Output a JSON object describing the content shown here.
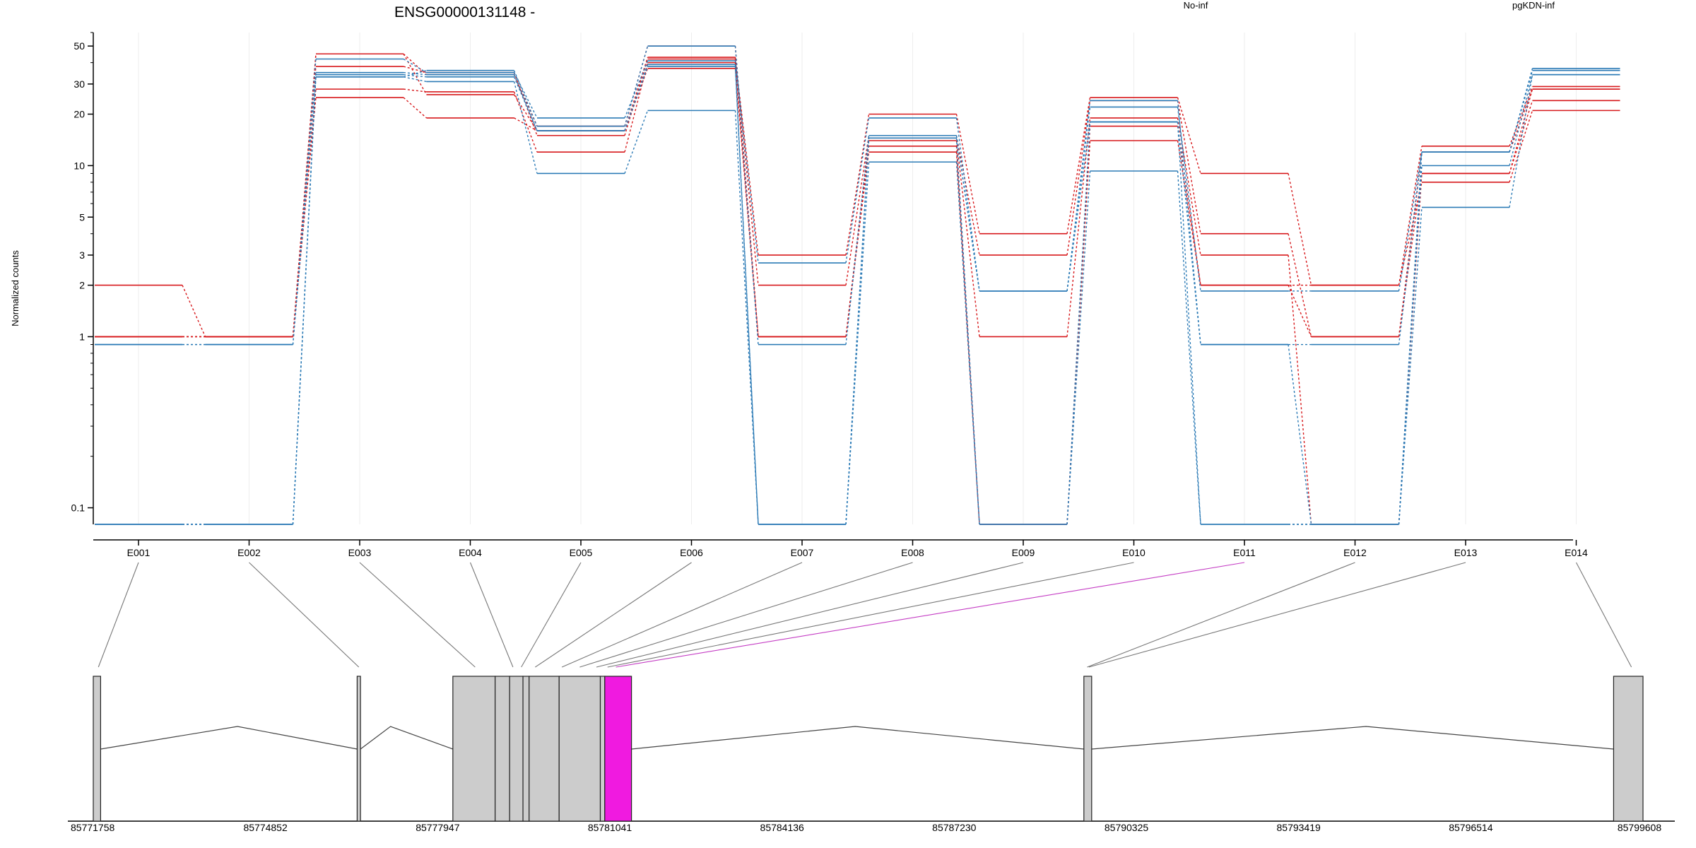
{
  "chart_data": {
    "type": "line",
    "title": "ENSG00000131148 -",
    "ylabel": "Normalized counts",
    "xlabel": "",
    "y_scale": "log",
    "ylim": [
      0.08,
      60
    ],
    "y_ticks": [
      {
        "value": 50,
        "label": "50"
      },
      {
        "value": 30,
        "label": "30"
      },
      {
        "value": 20,
        "label": "20"
      },
      {
        "value": 10,
        "label": "10"
      },
      {
        "value": 5,
        "label": "5"
      },
      {
        "value": 3,
        "label": "3"
      },
      {
        "value": 2,
        "label": "2"
      },
      {
        "value": 1,
        "label": "1"
      },
      {
        "value": 0.1,
        "label": "0.1"
      }
    ],
    "categories": [
      "E001",
      "E002",
      "E003",
      "E004",
      "E005",
      "E006",
      "E007",
      "E008",
      "E009",
      "E010",
      "E011",
      "E012",
      "E013",
      "E014"
    ],
    "legend": [
      {
        "name": "No-inf",
        "color": "#d7191c"
      },
      {
        "name": "pgKDN-inf",
        "color": "#2c7bb6"
      }
    ],
    "highlight_color": "#f01ae0",
    "highlighted_exon": "E011",
    "series": [
      {
        "group": "No-inf",
        "values": [
          2,
          1,
          38,
          35,
          15,
          42,
          3,
          20,
          4,
          25,
          9,
          2,
          13,
          29
        ]
      },
      {
        "group": "No-inf",
        "values": [
          1,
          1,
          45,
          26,
          16,
          43,
          2,
          15,
          3,
          24,
          4,
          1,
          12,
          28
        ]
      },
      {
        "group": "No-inf",
        "values": [
          1,
          1,
          28,
          27,
          12,
          40,
          1,
          14,
          1,
          19,
          3,
          0.08,
          9,
          24
        ]
      },
      {
        "group": "No-inf",
        "values": [
          1,
          1,
          25,
          19,
          16,
          37,
          1,
          12,
          0.08,
          17,
          2,
          2,
          8,
          21
        ]
      },
      {
        "group": "No-inf",
        "values": [
          1,
          1,
          45,
          34,
          17,
          50,
          1,
          13,
          0.08,
          14,
          2,
          1,
          9,
          28
        ]
      },
      {
        "group": "pgKDN-inf",
        "values": [
          0.9,
          0.9,
          42,
          35,
          19,
          41,
          2.7,
          19,
          1.85,
          22,
          1.85,
          1.85,
          12,
          36
        ]
      },
      {
        "group": "pgKDN-inf",
        "values": [
          0.9,
          0.9,
          33,
          36,
          17,
          50,
          0.9,
          15,
          1.85,
          24,
          0.9,
          0.9,
          12,
          37
        ]
      },
      {
        "group": "pgKDN-inf",
        "values": [
          0.08,
          0.08,
          34,
          33,
          16,
          38,
          0.08,
          15,
          1.85,
          18,
          0.9,
          0.08,
          10,
          34
        ]
      },
      {
        "group": "pgKDN-inf",
        "values": [
          0.08,
          0.08,
          33,
          31,
          9,
          21,
          0.08,
          10.5,
          0.08,
          9.3,
          0.08,
          0.08,
          5.7,
          34
        ]
      },
      {
        "group": "pgKDN-inf",
        "values": [
          0.08,
          0.08,
          35,
          34,
          16,
          39,
          0.08,
          14.5,
          0.08,
          18,
          0.08,
          0.08,
          12,
          36
        ]
      }
    ],
    "genome_axis": {
      "start": 85771758,
      "end": 85799608,
      "tick_labels": [
        "85771758",
        "85774852",
        "85777947",
        "85781041",
        "85784136",
        "85787230",
        "85790325",
        "85793419",
        "85796514",
        "85799608"
      ]
    },
    "exon_segments": [
      {
        "start": 85771758,
        "end": 85771890
      },
      {
        "start": 85776500,
        "end": 85776560
      },
      {
        "start": 85778220,
        "end": 85778980
      },
      {
        "start": 85778980,
        "end": 85779240
      },
      {
        "start": 85779240,
        "end": 85779480
      },
      {
        "start": 85779480,
        "end": 85779590
      },
      {
        "start": 85779590,
        "end": 85780130
      },
      {
        "start": 85780130,
        "end": 85780870
      },
      {
        "start": 85780870,
        "end": 85780950
      },
      {
        "start": 85780950,
        "end": 85781430,
        "highlight": true
      },
      {
        "start": 85789560,
        "end": 85789700
      },
      {
        "start": 85799080,
        "end": 85799608
      }
    ],
    "introns": [
      {
        "start": 85771890,
        "end": 85776500,
        "peak": 85774350
      },
      {
        "start": 85776560,
        "end": 85778220,
        "peak": 85777100
      },
      {
        "start": 85781430,
        "end": 85789560,
        "peak": 85785450
      },
      {
        "start": 85789700,
        "end": 85799080,
        "peak": 85794630
      }
    ],
    "exon_links": [
      85771850,
      85776530,
      85778620,
      85779300,
      85779450,
      85779700,
      85780180,
      85780500,
      85780800,
      85781000,
      85781150,
      85789620,
      85789650,
      85799400
    ]
  }
}
